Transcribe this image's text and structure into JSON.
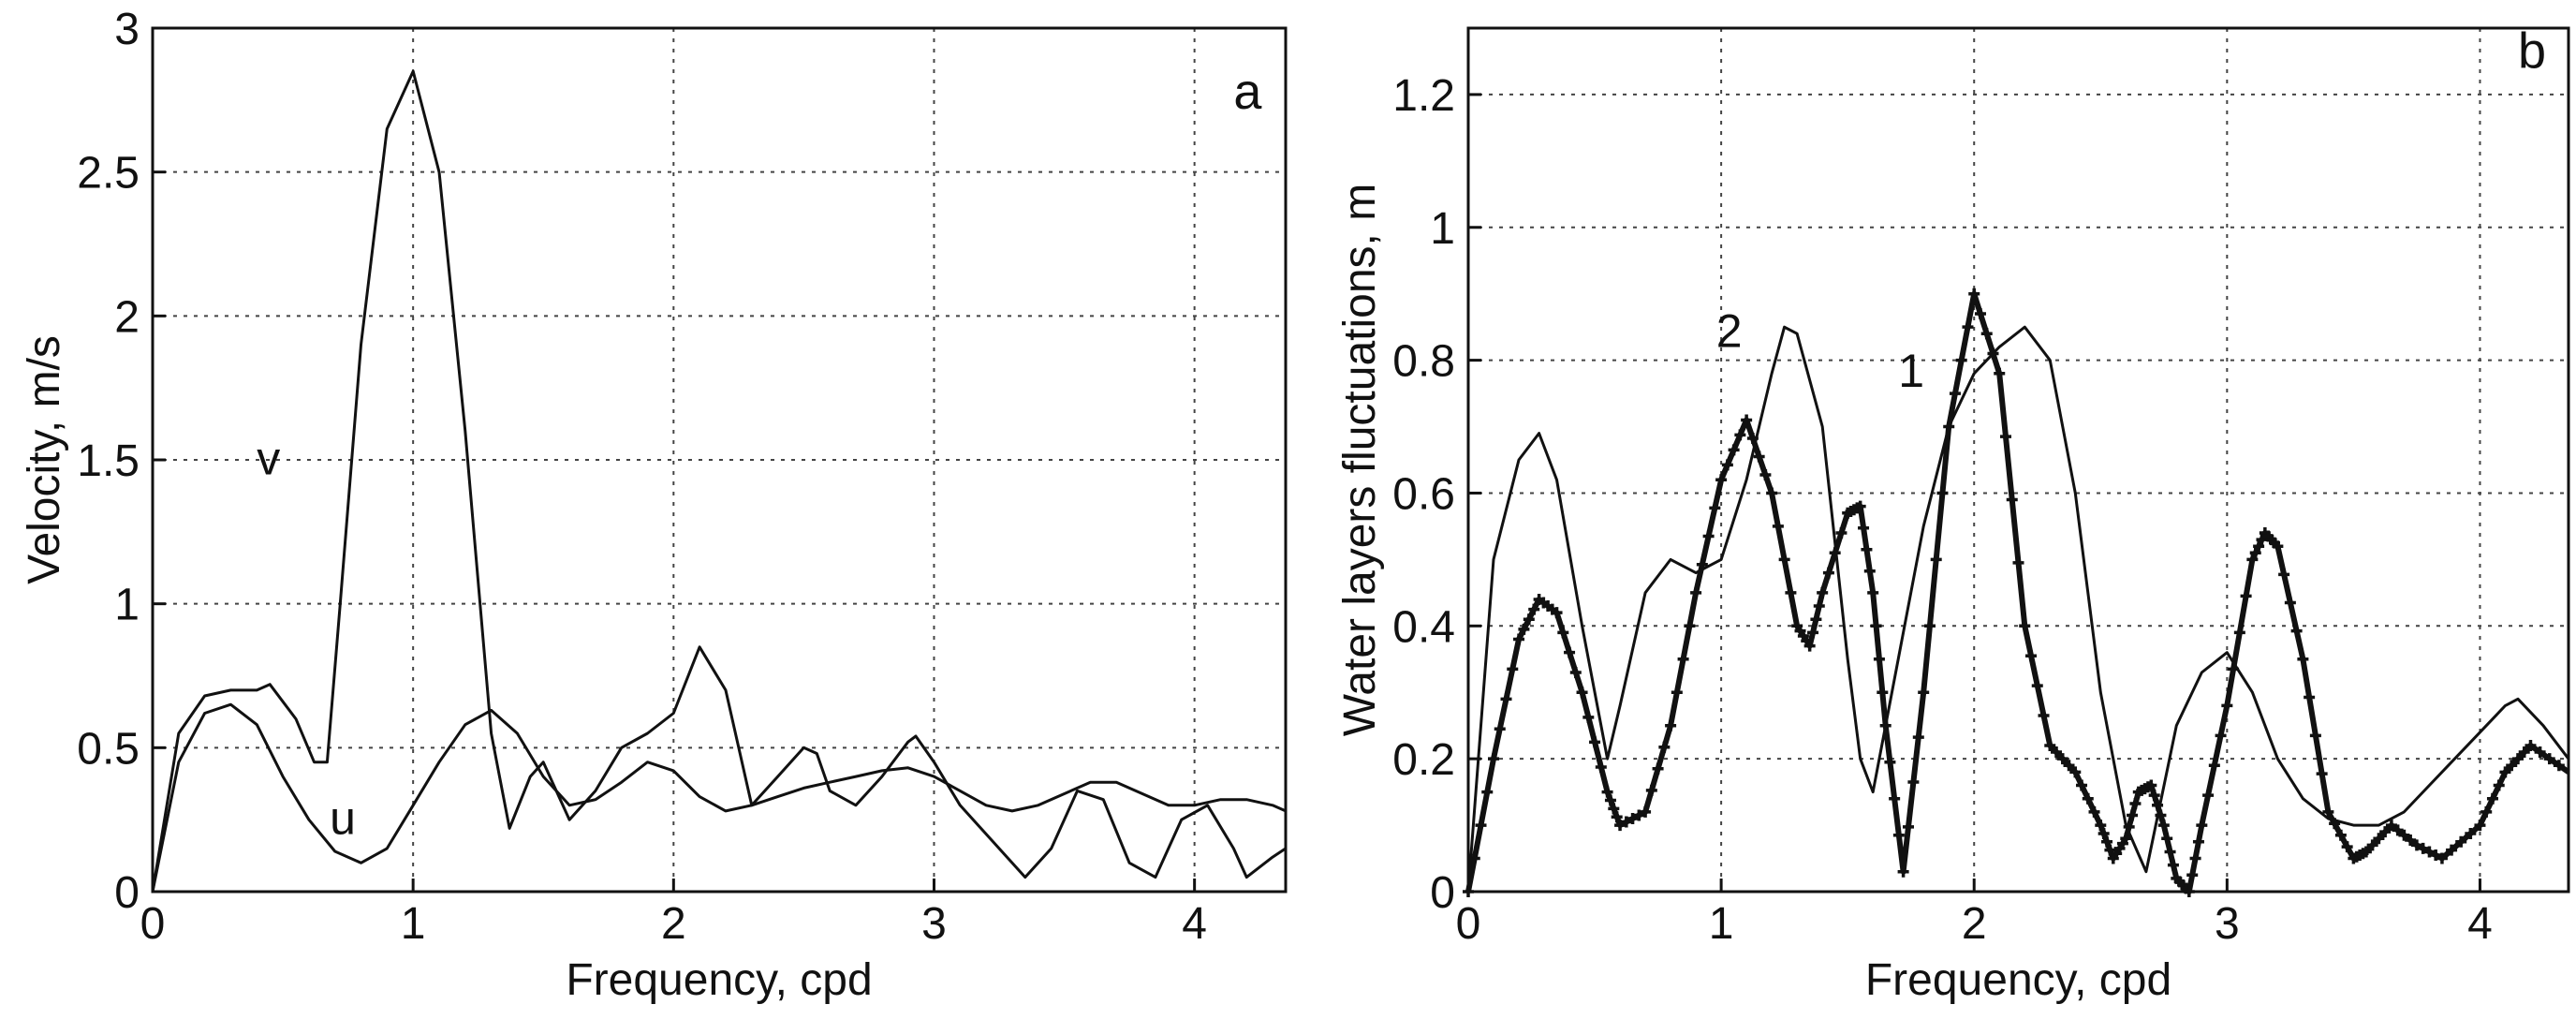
{
  "chart_data": [
    {
      "panel": "a",
      "type": "line",
      "xlabel": "Frequency, cpd",
      "ylabel": "Velocity, m/s",
      "xlim": [
        0,
        4.35
      ],
      "ylim": [
        0,
        3
      ],
      "xticks": [
        "0",
        "1",
        "2",
        "3",
        "4"
      ],
      "yticks": [
        "0",
        "0.5",
        "1",
        "1.5",
        "2",
        "2.5",
        "3"
      ],
      "grid": true,
      "series": [
        {
          "name": "v",
          "style": "thin",
          "x": [
            0,
            0.1,
            0.2,
            0.3,
            0.4,
            0.45,
            0.55,
            0.62,
            0.67,
            0.72,
            0.8,
            0.9,
            1.0,
            1.1,
            1.2,
            1.3,
            1.37,
            1.45,
            1.5,
            1.6,
            1.7,
            1.8,
            1.9,
            2.0,
            2.1,
            2.2,
            2.3,
            2.4,
            2.5,
            2.55,
            2.6,
            2.7,
            2.8,
            2.9,
            2.93,
            3.0,
            3.1,
            3.2,
            3.3,
            3.35,
            3.45,
            3.55,
            3.65,
            3.75,
            3.85,
            3.95,
            4.05,
            4.15,
            4.2,
            4.3,
            4.35
          ],
          "y": [
            0,
            0.55,
            0.68,
            0.7,
            0.7,
            0.72,
            0.6,
            0.45,
            0.45,
            1.0,
            1.9,
            2.65,
            2.85,
            2.5,
            1.6,
            0.55,
            0.22,
            0.4,
            0.45,
            0.25,
            0.35,
            0.5,
            0.55,
            0.62,
            0.85,
            0.7,
            0.3,
            0.4,
            0.5,
            0.48,
            0.35,
            0.3,
            0.4,
            0.52,
            0.54,
            0.45,
            0.3,
            0.2,
            0.1,
            0.05,
            0.15,
            0.35,
            0.32,
            0.1,
            0.05,
            0.25,
            0.3,
            0.15,
            0.05,
            0.12,
            0.15
          ]
        },
        {
          "name": "u",
          "style": "thin",
          "x": [
            0,
            0.1,
            0.2,
            0.3,
            0.4,
            0.5,
            0.6,
            0.7,
            0.8,
            0.9,
            1.0,
            1.1,
            1.2,
            1.3,
            1.4,
            1.5,
            1.6,
            1.7,
            1.8,
            1.9,
            2.0,
            2.1,
            2.2,
            2.3,
            2.4,
            2.5,
            2.6,
            2.7,
            2.8,
            2.9,
            3.0,
            3.1,
            3.2,
            3.3,
            3.4,
            3.5,
            3.6,
            3.7,
            3.8,
            3.9,
            4.0,
            4.1,
            4.2,
            4.3,
            4.35
          ],
          "y": [
            0,
            0.45,
            0.62,
            0.65,
            0.58,
            0.4,
            0.25,
            0.14,
            0.1,
            0.15,
            0.3,
            0.45,
            0.58,
            0.63,
            0.55,
            0.4,
            0.3,
            0.32,
            0.38,
            0.45,
            0.42,
            0.33,
            0.28,
            0.3,
            0.33,
            0.36,
            0.38,
            0.4,
            0.42,
            0.43,
            0.4,
            0.35,
            0.3,
            0.28,
            0.3,
            0.34,
            0.38,
            0.38,
            0.34,
            0.3,
            0.3,
            0.32,
            0.32,
            0.3,
            0.28
          ]
        }
      ]
    },
    {
      "panel": "b",
      "type": "line",
      "xlabel": "Frequency, cpd",
      "ylabel": "Water layers fluctuations, m",
      "xlim": [
        0,
        4.35
      ],
      "ylim": [
        0,
        1.3
      ],
      "xticks": [
        "0",
        "1",
        "2",
        "3",
        "4"
      ],
      "yticks": [
        "0",
        "0.2",
        "0.4",
        "0.6",
        "0.8",
        "1",
        "1.2"
      ],
      "grid": true,
      "series": [
        {
          "name": "1",
          "style": "thick-markers",
          "x": [
            0,
            0.1,
            0.2,
            0.28,
            0.35,
            0.45,
            0.55,
            0.6,
            0.7,
            0.8,
            0.9,
            1.0,
            1.1,
            1.2,
            1.3,
            1.35,
            1.4,
            1.5,
            1.55,
            1.6,
            1.65,
            1.72,
            1.8,
            1.9,
            2.0,
            2.1,
            2.2,
            2.3,
            2.4,
            2.5,
            2.55,
            2.6,
            2.65,
            2.7,
            2.75,
            2.8,
            2.85,
            2.9,
            3.0,
            3.1,
            3.15,
            3.2,
            3.3,
            3.4,
            3.5,
            3.55,
            3.65,
            3.75,
            3.85,
            4.0,
            4.1,
            4.2,
            4.35
          ],
          "y": [
            0,
            0.2,
            0.38,
            0.44,
            0.42,
            0.3,
            0.15,
            0.1,
            0.12,
            0.25,
            0.45,
            0.62,
            0.71,
            0.6,
            0.4,
            0.37,
            0.45,
            0.57,
            0.58,
            0.45,
            0.25,
            0.03,
            0.3,
            0.7,
            0.9,
            0.78,
            0.4,
            0.22,
            0.18,
            0.1,
            0.05,
            0.08,
            0.15,
            0.16,
            0.1,
            0.02,
            0.0,
            0.1,
            0.28,
            0.5,
            0.54,
            0.52,
            0.35,
            0.12,
            0.05,
            0.06,
            0.1,
            0.07,
            0.05,
            0.1,
            0.18,
            0.22,
            0.18
          ]
        },
        {
          "name": "2",
          "style": "thin",
          "x": [
            0,
            0.1,
            0.2,
            0.28,
            0.35,
            0.45,
            0.55,
            0.6,
            0.7,
            0.8,
            0.9,
            1.0,
            1.1,
            1.2,
            1.25,
            1.3,
            1.4,
            1.5,
            1.55,
            1.6,
            1.7,
            1.8,
            1.9,
            2.0,
            2.1,
            2.2,
            2.3,
            2.4,
            2.5,
            2.6,
            2.68,
            2.8,
            2.9,
            3.0,
            3.1,
            3.2,
            3.3,
            3.4,
            3.5,
            3.6,
            3.7,
            3.8,
            3.9,
            4.0,
            4.1,
            4.15,
            4.25,
            4.35
          ],
          "y": [
            0,
            0.5,
            0.65,
            0.69,
            0.62,
            0.4,
            0.2,
            0.28,
            0.45,
            0.5,
            0.48,
            0.5,
            0.62,
            0.78,
            0.85,
            0.84,
            0.7,
            0.35,
            0.2,
            0.15,
            0.35,
            0.55,
            0.7,
            0.78,
            0.82,
            0.85,
            0.8,
            0.6,
            0.3,
            0.1,
            0.03,
            0.25,
            0.33,
            0.36,
            0.3,
            0.2,
            0.14,
            0.11,
            0.1,
            0.1,
            0.12,
            0.16,
            0.2,
            0.24,
            0.28,
            0.29,
            0.25,
            0.2
          ]
        }
      ]
    }
  ],
  "labels": {
    "panel_a": "a",
    "panel_b": "b",
    "curve_v": "v",
    "curve_u": "u",
    "curve_1": "1",
    "curve_2": "2"
  }
}
